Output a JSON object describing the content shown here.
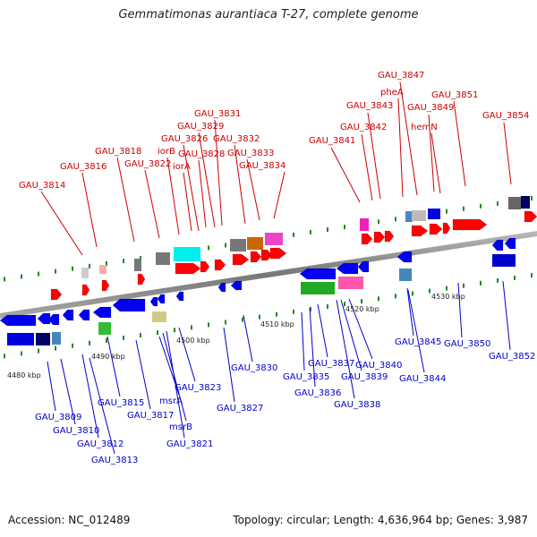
{
  "title": "Gemmatimonas aurantiaca T-27, complete genome",
  "footer": {
    "accession": "Accession: NC_012489",
    "summary": "Topology: circular; Length: 4,636,964 bp; Genes: 3,987"
  },
  "ticks": [
    "4480 kbp",
    "4490 kbp",
    "4500 kbp",
    "4510 kbp",
    "4520 kbp",
    "4530 kbp"
  ],
  "top_labels": [
    "GAU_3814",
    "GAU_3816",
    "GAU_3818",
    "GAU_3822",
    "iorB",
    "iorA",
    "GAU_3826",
    "GAU_3828",
    "GAU_3829",
    "GAU_3831",
    "GAU_3832",
    "GAU_3833",
    "GAU_3834",
    "GAU_3841",
    "GAU_3842",
    "GAU_3843",
    "pheA",
    "GAU_3847",
    "hemN",
    "GAU_3849",
    "GAU_3851",
    "GAU_3854"
  ],
  "bottom_labels": [
    "GAU_3809",
    "GAU_3810",
    "GAU_3812",
    "GAU_3813",
    "GAU_3815",
    "GAU_3817",
    "msrA",
    "msrB",
    "GAU_3821",
    "GAU_3823",
    "GAU_3827",
    "GAU_3830",
    "GAU_3835",
    "GAU_3836",
    "GAU_3837",
    "GAU_3838",
    "GAU_3839",
    "GAU_3840",
    "GAU_3844",
    "GAU_3845",
    "GAU_3850",
    "GAU_3852"
  ],
  "colors": {
    "forward_gene": "#ff0000",
    "reverse_gene": "#0000ee",
    "top_label": "#cc0000",
    "bottom_label": "#0000cc",
    "backbone": "#888888",
    "tick": "#228822"
  }
}
